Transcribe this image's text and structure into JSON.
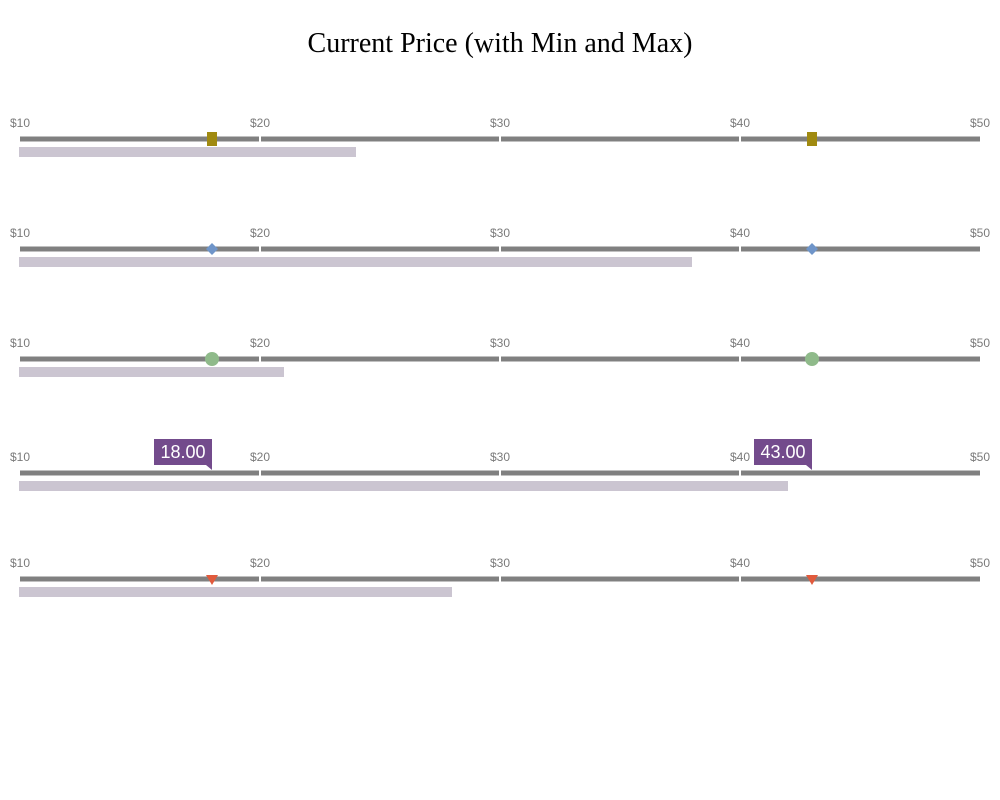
{
  "chart_data": {
    "type": "bullet",
    "title": "Current Price (with Min and Max)",
    "x_range": [
      10,
      50
    ],
    "ticks": [
      10,
      20,
      30,
      40,
      50
    ],
    "tick_labels": [
      "$10",
      "$20",
      "$30",
      "$40",
      "$50"
    ],
    "colors": {
      "track": "#808080",
      "current_bar": "#cbc5d1",
      "callout": "#734b8c"
    },
    "rows": [
      {
        "current": 24,
        "min": 18,
        "max": 43,
        "marker": "square",
        "marker_color": "#a08a10",
        "show_values": false
      },
      {
        "current": 38,
        "min": 18,
        "max": 43,
        "marker": "diamond",
        "marker_color": "#6f95c9",
        "show_values": false
      },
      {
        "current": 21,
        "min": 18,
        "max": 43,
        "marker": "circle",
        "marker_color": "#8fba8a",
        "show_values": false
      },
      {
        "current": 42,
        "min": 18,
        "max": 43,
        "marker": "callout",
        "marker_color": "#734b8c",
        "show_values": true,
        "min_label": "18.00",
        "max_label": "43.00"
      },
      {
        "current": 28,
        "min": 18,
        "max": 43,
        "marker": "triangle-down",
        "marker_color": "#e05a3c",
        "show_values": false
      }
    ]
  }
}
